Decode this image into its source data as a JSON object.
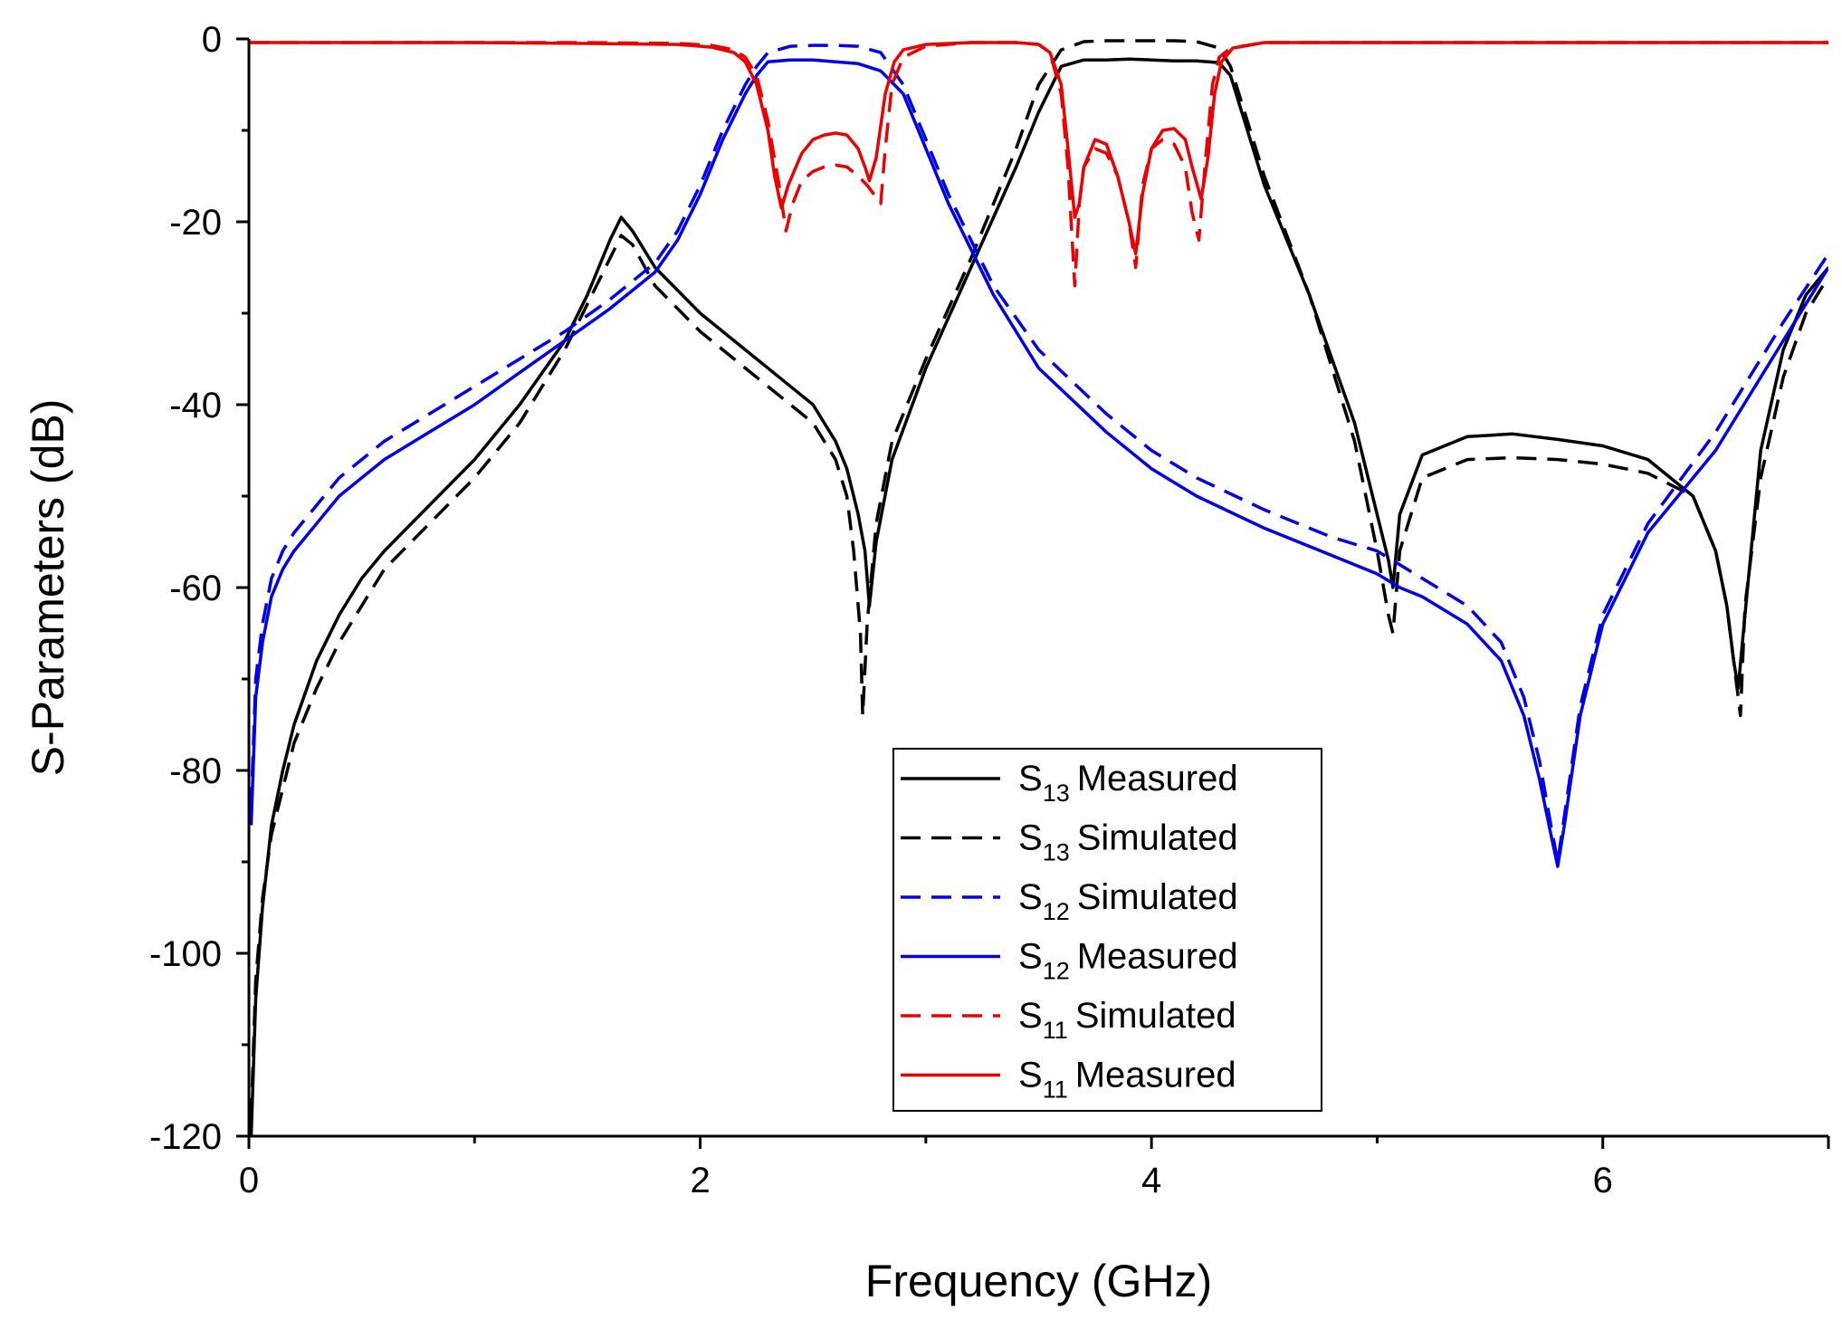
{
  "chart_data": {
    "type": "line",
    "xlabel": "Frequency (GHz)",
    "ylabel": "S-Parameters (dB)",
    "xlim": [
      0,
      7
    ],
    "ylim": [
      -120,
      0
    ],
    "xticks": [
      0,
      2,
      4,
      6
    ],
    "xtick_labels": [
      "0",
      "2",
      "4",
      "6"
    ],
    "yticks": [
      0,
      -20,
      -40,
      -60,
      -80,
      -100,
      -120
    ],
    "ytick_labels": [
      "0",
      "-20",
      "-40",
      "-60",
      "-80",
      "-100",
      "-120"
    ],
    "grid": false,
    "legend_position": "bottom-center",
    "series": [
      {
        "name": "S13 Measured",
        "sym": "S",
        "sub": "13",
        "label": "Measured",
        "color": "#000000",
        "style": "solid",
        "x": [
          0.01,
          0.03,
          0.06,
          0.1,
          0.15,
          0.2,
          0.3,
          0.4,
          0.5,
          0.6,
          0.8,
          1.0,
          1.2,
          1.4,
          1.5,
          1.6,
          1.65,
          1.7,
          1.8,
          2.0,
          2.2,
          2.4,
          2.5,
          2.6,
          2.65,
          2.7,
          2.73,
          2.75,
          2.78,
          2.85,
          3.0,
          3.2,
          3.4,
          3.5,
          3.6,
          3.7,
          3.8,
          3.9,
          4.0,
          4.1,
          4.2,
          4.3,
          4.35,
          4.4,
          4.5,
          4.7,
          4.9,
          5.0,
          5.05,
          5.07,
          5.1,
          5.2,
          5.4,
          5.6,
          5.8,
          6.0,
          6.2,
          6.4,
          6.5,
          6.55,
          6.58,
          6.6,
          6.63,
          6.7,
          6.8,
          6.9,
          7.0
        ],
        "y": [
          -120,
          -105,
          -95,
          -86,
          -80,
          -75,
          -68,
          -63,
          -59,
          -56,
          -51,
          -46,
          -40,
          -33,
          -28,
          -22,
          -19.5,
          -21,
          -25,
          -30,
          -34,
          -38,
          -40,
          -44,
          -47,
          -52,
          -56,
          -62,
          -55,
          -46,
          -36,
          -25,
          -14,
          -8,
          -3,
          -2.3,
          -2.3,
          -2.2,
          -2.3,
          -2.4,
          -2.4,
          -2.6,
          -4,
          -8,
          -16,
          -28,
          -42,
          -52,
          -57,
          -60,
          -52,
          -45.5,
          -43.5,
          -43.2,
          -43.8,
          -44.5,
          -46,
          -50,
          -56,
          -62,
          -68,
          -71,
          -63,
          -45,
          -34,
          -28,
          -25
        ]
      },
      {
        "name": "S13 Simulated",
        "sym": "S",
        "sub": "13",
        "label": "Simulated",
        "color": "#000000",
        "style": "dash",
        "x": [
          0.01,
          0.03,
          0.06,
          0.1,
          0.15,
          0.2,
          0.3,
          0.4,
          0.5,
          0.6,
          0.8,
          1.0,
          1.2,
          1.4,
          1.5,
          1.6,
          1.65,
          1.7,
          1.8,
          2.0,
          2.2,
          2.4,
          2.5,
          2.6,
          2.65,
          2.68,
          2.71,
          2.72,
          2.74,
          2.78,
          2.85,
          3.0,
          3.2,
          3.4,
          3.5,
          3.6,
          3.7,
          3.8,
          3.9,
          4.0,
          4.1,
          4.2,
          4.3,
          4.35,
          4.4,
          4.5,
          4.7,
          4.9,
          5.0,
          5.05,
          5.07,
          5.1,
          5.2,
          5.4,
          5.6,
          5.8,
          6.0,
          6.2,
          6.4,
          6.5,
          6.55,
          6.58,
          6.61,
          6.63,
          6.7,
          6.8,
          6.9,
          7.0
        ],
        "y": [
          -118,
          -103,
          -94,
          -87,
          -82,
          -77,
          -71,
          -66,
          -62,
          -58,
          -53,
          -48,
          -42,
          -34,
          -29,
          -24,
          -21.5,
          -22.5,
          -27,
          -32,
          -36,
          -40,
          -42,
          -46,
          -50,
          -56,
          -65,
          -74,
          -64,
          -53,
          -44,
          -35,
          -24,
          -12,
          -5,
          -1.2,
          -0.3,
          -0.2,
          -0.2,
          -0.2,
          -0.2,
          -0.3,
          -1,
          -3,
          -7,
          -15,
          -28,
          -44,
          -56,
          -63,
          -65,
          -56,
          -48,
          -46,
          -45.8,
          -46,
          -46.5,
          -47.5,
          -50,
          -56,
          -62,
          -68,
          -74,
          -62,
          -48,
          -37,
          -30,
          -26
        ]
      },
      {
        "name": "S12 Simulated",
        "sym": "S",
        "sub": "12",
        "label": "Simulated",
        "color": "#0000ee",
        "style": "dash",
        "x": [
          0.01,
          0.03,
          0.06,
          0.1,
          0.15,
          0.2,
          0.3,
          0.4,
          0.5,
          0.6,
          0.8,
          1.0,
          1.2,
          1.4,
          1.6,
          1.8,
          1.9,
          2.0,
          2.1,
          2.2,
          2.25,
          2.3,
          2.4,
          2.5,
          2.6,
          2.7,
          2.8,
          2.9,
          3.0,
          3.1,
          3.2,
          3.3,
          3.5,
          3.8,
          4.0,
          4.2,
          4.5,
          4.8,
          5.0,
          5.1,
          5.2,
          5.4,
          5.55,
          5.65,
          5.72,
          5.77,
          5.8,
          5.83,
          5.9,
          6.0,
          6.2,
          6.5,
          6.8,
          7.0
        ],
        "y": [
          -84,
          -70,
          -64,
          -59,
          -56,
          -54,
          -51,
          -48,
          -46,
          -44,
          -41,
          -38,
          -35,
          -32,
          -28.5,
          -24.5,
          -21,
          -16,
          -10,
          -5,
          -3,
          -1.5,
          -0.8,
          -0.7,
          -0.7,
          -0.8,
          -1.5,
          -5,
          -11,
          -17,
          -22,
          -27,
          -34,
          -41,
          -45,
          -48,
          -51.5,
          -54.5,
          -56,
          -57.5,
          -59,
          -62,
          -66,
          -72,
          -79,
          -86,
          -90,
          -85,
          -73,
          -63,
          -53,
          -43,
          -31,
          -23.5
        ]
      },
      {
        "name": "S12 Measured",
        "sym": "S",
        "sub": "12",
        "label": "Measured",
        "color": "#0000ee",
        "style": "solid",
        "x": [
          0.01,
          0.03,
          0.06,
          0.1,
          0.15,
          0.2,
          0.3,
          0.4,
          0.5,
          0.6,
          0.8,
          1.0,
          1.2,
          1.4,
          1.6,
          1.8,
          1.9,
          2.0,
          2.1,
          2.2,
          2.25,
          2.3,
          2.4,
          2.5,
          2.6,
          2.7,
          2.8,
          2.9,
          3.0,
          3.1,
          3.2,
          3.3,
          3.5,
          3.8,
          4.0,
          4.2,
          4.5,
          4.8,
          5.0,
          5.1,
          5.2,
          5.4,
          5.55,
          5.65,
          5.72,
          5.77,
          5.8,
          5.83,
          5.9,
          6.0,
          6.2,
          6.5,
          6.8,
          7.0
        ],
        "y": [
          -86,
          -72,
          -66,
          -61,
          -58,
          -56,
          -53,
          -50,
          -48,
          -46,
          -43,
          -40,
          -36.5,
          -33,
          -29.5,
          -25.5,
          -22,
          -17,
          -11,
          -6,
          -4,
          -2.5,
          -2.3,
          -2.3,
          -2.5,
          -2.7,
          -3.5,
          -6,
          -12,
          -18,
          -23,
          -28,
          -36,
          -43,
          -47,
          -50,
          -53.5,
          -56.5,
          -58.5,
          -60,
          -61,
          -64,
          -68,
          -74,
          -81,
          -87,
          -90.5,
          -86,
          -74,
          -64,
          -54,
          -45,
          -33,
          -25
        ]
      },
      {
        "name": "S11 Simulated",
        "sym": "S",
        "sub": "11",
        "label": "Simulated",
        "color": "#ee0000",
        "style": "dash",
        "x": [
          0.0,
          0.5,
          1.0,
          1.5,
          1.9,
          2.05,
          2.15,
          2.2,
          2.25,
          2.3,
          2.35,
          2.38,
          2.41,
          2.45,
          2.5,
          2.55,
          2.6,
          2.65,
          2.7,
          2.74,
          2.77,
          2.8,
          2.82,
          2.85,
          2.9,
          3.0,
          3.2,
          3.4,
          3.5,
          3.55,
          3.6,
          3.63,
          3.66,
          3.68,
          3.7,
          3.75,
          3.8,
          3.85,
          3.9,
          3.93,
          3.96,
          4.0,
          4.05,
          4.1,
          4.15,
          4.18,
          4.21,
          4.24,
          4.27,
          4.3,
          4.35,
          4.5,
          5.0,
          6.0,
          7.0
        ],
        "y": [
          -0.4,
          -0.4,
          -0.4,
          -0.4,
          -0.5,
          -0.7,
          -1.2,
          -2,
          -4,
          -9,
          -16,
          -21,
          -18,
          -15.5,
          -14.5,
          -14,
          -13.8,
          -14,
          -15,
          -16,
          -17,
          -18,
          -12,
          -5,
          -2,
          -0.8,
          -0.4,
          -0.4,
          -0.6,
          -1.5,
          -6,
          -14,
          -27,
          -18,
          -14,
          -12,
          -12.5,
          -15,
          -20,
          -25,
          -16,
          -12,
          -11,
          -11.5,
          -14,
          -19,
          -22,
          -13,
          -5,
          -2,
          -1,
          -0.4,
          -0.4,
          -0.4,
          -0.4
        ]
      },
      {
        "name": "S11 Measured",
        "sym": "S",
        "sub": "11",
        "label": "Measured",
        "color": "#ee0000",
        "style": "solid",
        "x": [
          0.0,
          0.5,
          1.0,
          1.5,
          1.9,
          2.05,
          2.15,
          2.2,
          2.25,
          2.3,
          2.33,
          2.36,
          2.39,
          2.45,
          2.5,
          2.55,
          2.6,
          2.65,
          2.7,
          2.73,
          2.75,
          2.78,
          2.82,
          2.86,
          2.9,
          3.0,
          3.2,
          3.4,
          3.5,
          3.55,
          3.6,
          3.63,
          3.66,
          3.68,
          3.7,
          3.75,
          3.8,
          3.85,
          3.9,
          3.93,
          3.96,
          4.0,
          4.05,
          4.1,
          4.15,
          4.18,
          4.22,
          4.25,
          4.28,
          4.31,
          4.36,
          4.5,
          5.0,
          6.0,
          7.0
        ],
        "y": [
          -0.4,
          -0.4,
          -0.4,
          -0.5,
          -0.6,
          -0.9,
          -1.5,
          -2.5,
          -5,
          -10,
          -15,
          -18.5,
          -16,
          -12.5,
          -11,
          -10.5,
          -10.3,
          -10.5,
          -12,
          -14,
          -15.5,
          -13,
          -6,
          -2.5,
          -1.2,
          -0.6,
          -0.4,
          -0.4,
          -0.6,
          -1.5,
          -5,
          -12,
          -19.5,
          -18,
          -14,
          -11,
          -11.5,
          -15,
          -20,
          -23.5,
          -17,
          -12,
          -10,
          -9.8,
          -11,
          -14,
          -17.5,
          -13,
          -6,
          -2.5,
          -1,
          -0.4,
          -0.4,
          -0.4,
          -0.4
        ]
      }
    ]
  }
}
